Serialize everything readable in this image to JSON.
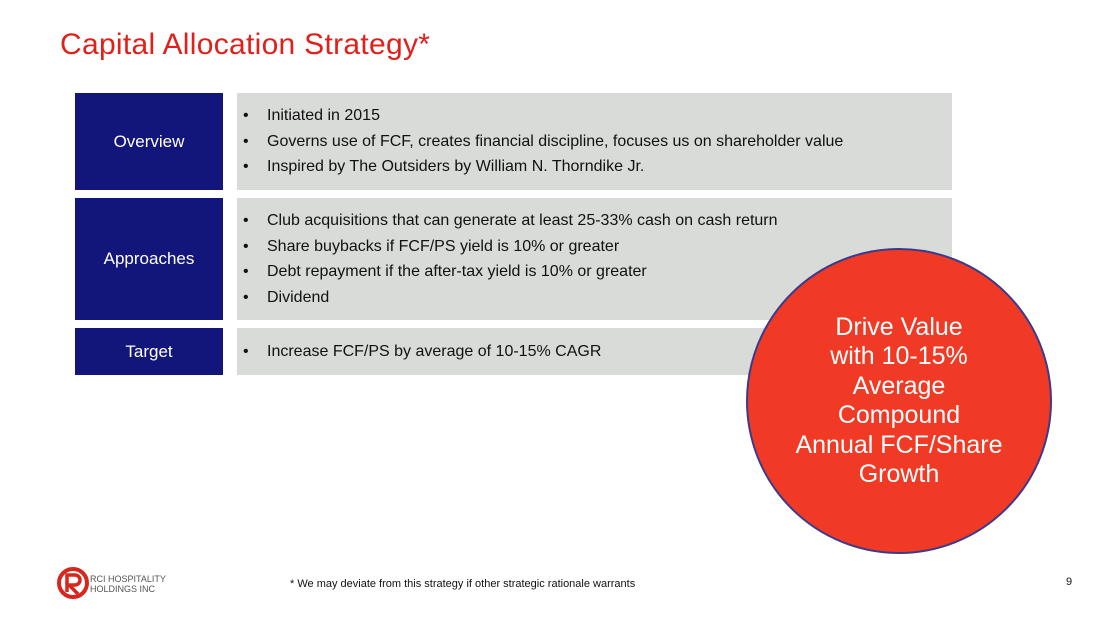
{
  "header": {
    "title": "Capital Allocation Strategy*"
  },
  "rows": [
    {
      "label": "Overview",
      "bullets": [
        "Initiated in 2015",
        "Governs use of FCF, creates financial discipline, focuses us on shareholder value",
        "Inspired by The Outsiders by William N. Thorndike Jr."
      ]
    },
    {
      "label": "Approaches",
      "bullets": [
        "Club acquisitions that can generate at least 25-33% cash on cash return",
        "Share buybacks if FCF/PS yield is 10% or greater",
        "Debt repayment if the after-tax yield is 10% or greater",
        "Dividend"
      ]
    },
    {
      "label": "Target",
      "bullets": [
        "Increase FCF/PS by average of 10-15% CAGR"
      ]
    }
  ],
  "callout": {
    "lines": [
      "Drive Value",
      "with 10-15%",
      "Average",
      "Compound",
      "Annual FCF/Share",
      "Growth"
    ]
  },
  "footer": {
    "logo": [
      "RCI HOSPITALITY",
      "HOLDINGS INC"
    ],
    "note": "* We may deviate from this strategy if other strategic rationale warrants",
    "page": "9"
  }
}
